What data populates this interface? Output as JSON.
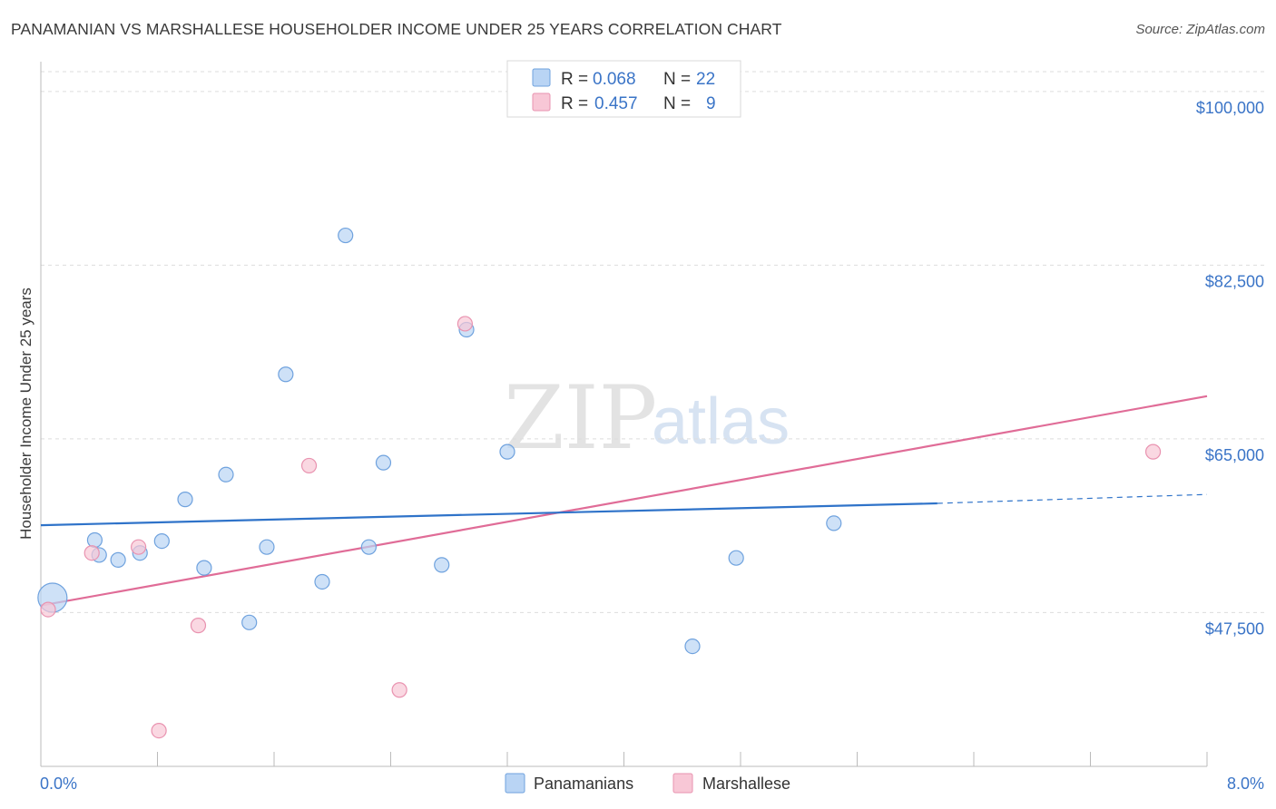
{
  "title": "PANAMANIAN VS MARSHALLESE HOUSEHOLDER INCOME UNDER 25 YEARS CORRELATION CHART",
  "source": "Source: ZipAtlas.com",
  "watermark": {
    "zip": "ZIP",
    "atlas": "atlas"
  },
  "colors": {
    "panamanian_fill": "#b9d4f4",
    "panamanian_stroke": "#6fa2de",
    "panamanian_line": "#2f73c9",
    "marshallese_fill": "#f8c7d6",
    "marshallese_stroke": "#e993b0",
    "marshallese_line": "#e06c97",
    "grid": "#dddddd",
    "tick_label": "#3a74c7"
  },
  "legend": {
    "rows": [
      {
        "r_label": "R =",
        "r_value": "0.068",
        "n_label": "N =",
        "n_value": "22"
      },
      {
        "r_label": "R =",
        "r_value": "0.457",
        "n_label": "N =",
        "n_value": "9"
      }
    ]
  },
  "bottom_legend": [
    "Panamanians",
    "Marshallese"
  ],
  "chart_data": {
    "type": "scatter",
    "title": "PANAMANIAN VS MARSHALLESE HOUSEHOLDER INCOME UNDER 25 YEARS CORRELATION CHART",
    "xlabel": "",
    "ylabel": "Householder Income Under 25 years",
    "xlim": [
      0,
      8
    ],
    "ylim": [
      32000,
      102000
    ],
    "x_tick_labels": [
      "0.0%",
      "8.0%"
    ],
    "x_tick_values": [
      0,
      8
    ],
    "y_tick_labels": [
      "$47,500",
      "$65,000",
      "$82,500",
      "$100,000"
    ],
    "y_tick_values": [
      47500,
      65000,
      82500,
      100000
    ],
    "grid": true,
    "legend_position": "top-center",
    "series": [
      {
        "name": "Panamanians",
        "points": [
          {
            "x": 0.08,
            "y": 49000,
            "size": "large"
          },
          {
            "x": 0.4,
            "y": 53300
          },
          {
            "x": 0.37,
            "y": 54800
          },
          {
            "x": 0.53,
            "y": 52800
          },
          {
            "x": 0.68,
            "y": 53500
          },
          {
            "x": 0.83,
            "y": 54700
          },
          {
            "x": 0.99,
            "y": 58900
          },
          {
            "x": 1.12,
            "y": 52000
          },
          {
            "x": 1.27,
            "y": 61400
          },
          {
            "x": 1.43,
            "y": 46500
          },
          {
            "x": 1.55,
            "y": 54100
          },
          {
            "x": 1.68,
            "y": 71500
          },
          {
            "x": 1.93,
            "y": 50600
          },
          {
            "x": 2.09,
            "y": 85500
          },
          {
            "x": 2.25,
            "y": 54100
          },
          {
            "x": 2.35,
            "y": 62600
          },
          {
            "x": 2.75,
            "y": 52300
          },
          {
            "x": 2.92,
            "y": 76000
          },
          {
            "x": 3.2,
            "y": 63700
          },
          {
            "x": 4.47,
            "y": 44100
          },
          {
            "x": 4.77,
            "y": 53000
          },
          {
            "x": 5.44,
            "y": 56500
          }
        ],
        "trend": {
          "x": [
            0,
            6.15
          ],
          "y": [
            56300,
            58500
          ],
          "dashed_to": {
            "x": 8,
            "y": 59400
          }
        }
      },
      {
        "name": "Marshallese",
        "points": [
          {
            "x": 0.05,
            "y": 47800
          },
          {
            "x": 0.35,
            "y": 53500
          },
          {
            "x": 0.67,
            "y": 54100
          },
          {
            "x": 0.81,
            "y": 35600
          },
          {
            "x": 1.08,
            "y": 46200
          },
          {
            "x": 1.84,
            "y": 62300
          },
          {
            "x": 2.46,
            "y": 39700
          },
          {
            "x": 2.91,
            "y": 76600
          },
          {
            "x": 7.63,
            "y": 63700
          }
        ],
        "trend": {
          "x": [
            0,
            8
          ],
          "y": [
            48200,
            69300
          ]
        }
      }
    ]
  }
}
